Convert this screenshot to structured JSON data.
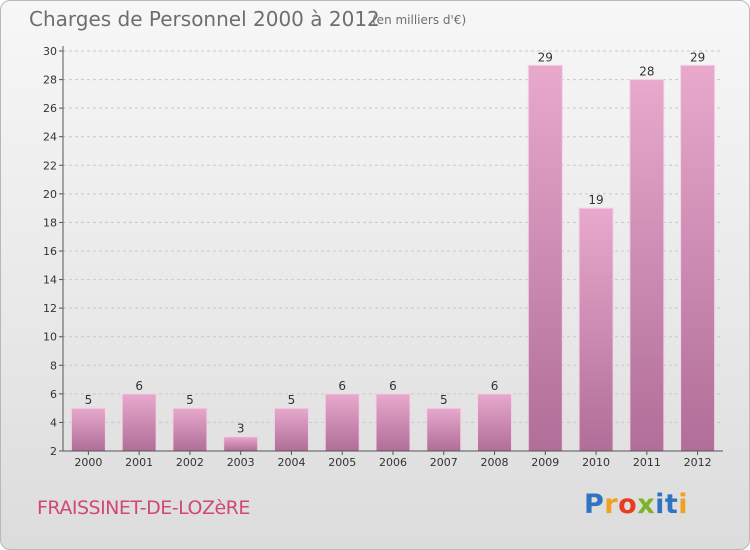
{
  "header": {
    "title": "Charges de Personnel 2000 à 2012",
    "subtitle": "(en milliers d'€)"
  },
  "footer": {
    "commune": "FRAISSINET-DE-LOZèRE",
    "logo_letters": [
      "P",
      "r",
      "o",
      "x",
      "i",
      "t",
      "i"
    ],
    "logo_colors": [
      "#2f74c0",
      "#f0a11e",
      "#e63f1f",
      "#7cb32b",
      "#2f74c0",
      "#2f74c0",
      "#f0a11e"
    ]
  },
  "colors": {
    "bar_top": "#e8a9cd",
    "bar_bottom": "#b06e98",
    "bar_edge": "#f3d3e6",
    "axis": "#555555",
    "grid": "#c8c8c8"
  },
  "chart_data": {
    "type": "bar",
    "title": "Charges de Personnel 2000 à 2012",
    "subtitle": "(en milliers d'€)",
    "categories": [
      "2000",
      "2001",
      "2002",
      "2003",
      "2004",
      "2005",
      "2006",
      "2007",
      "2008",
      "2009",
      "2010",
      "2011",
      "2012"
    ],
    "values": [
      5,
      6,
      5,
      3,
      5,
      6,
      6,
      5,
      6,
      29,
      19,
      28,
      29
    ],
    "ylim": [
      2,
      30
    ],
    "yticks": [
      2,
      4,
      6,
      8,
      10,
      12,
      14,
      16,
      18,
      20,
      22,
      24,
      26,
      28,
      30
    ],
    "grid": "horizontal dashed",
    "xlabel": "",
    "ylabel": ""
  }
}
